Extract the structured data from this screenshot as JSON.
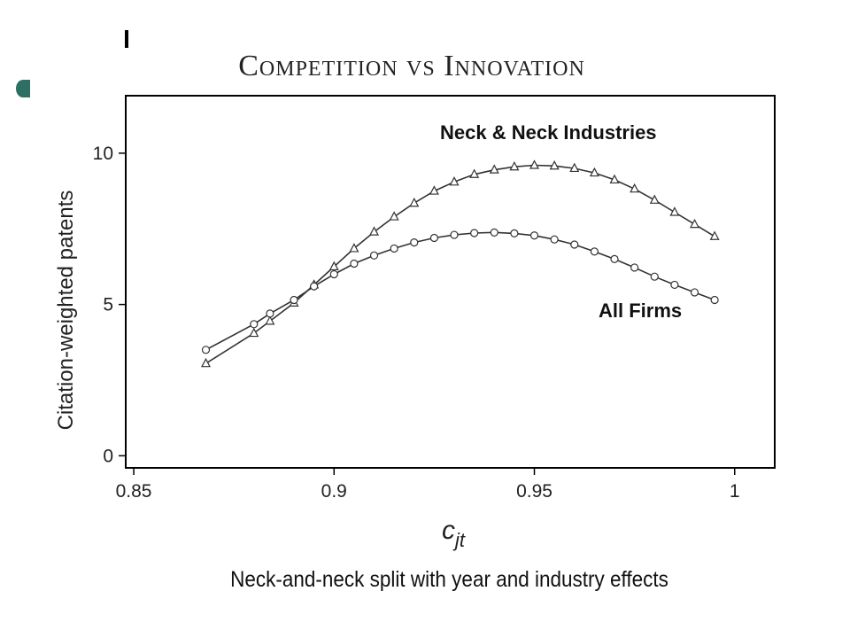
{
  "slide": {
    "title": "Competition vs Innovation",
    "caption": "Neck-and-neck split with year and industry effects"
  },
  "colors": {
    "accent": "#2f6f63",
    "ink": "#333333"
  },
  "chart_data": {
    "type": "line",
    "xlabel": "c_jt",
    "ylabel": "Citation-weighted patents",
    "xlim": [
      0.848,
      1.01
    ],
    "ylim": [
      -0.4,
      11.9
    ],
    "xticks": [
      "0.85",
      "0.9",
      "0.95",
      "1"
    ],
    "yticks": [
      "0",
      "5",
      "10"
    ],
    "grid": false,
    "annotations": [
      "Neck & Neck Industries",
      "All Firms"
    ],
    "series": [
      {
        "name": "Neck & Neck Industries",
        "marker": "triangle",
        "x": [
          0.868,
          0.88,
          0.884,
          0.89,
          0.895,
          0.9,
          0.905,
          0.91,
          0.915,
          0.92,
          0.925,
          0.93,
          0.935,
          0.94,
          0.945,
          0.95,
          0.955,
          0.96,
          0.965,
          0.97,
          0.975,
          0.98,
          0.985,
          0.99,
          0.995
        ],
        "y": [
          3.05,
          4.05,
          4.45,
          5.05,
          5.65,
          6.25,
          6.85,
          7.4,
          7.9,
          8.35,
          8.75,
          9.05,
          9.3,
          9.45,
          9.55,
          9.6,
          9.58,
          9.5,
          9.35,
          9.12,
          8.82,
          8.45,
          8.05,
          7.65,
          7.25
        ]
      },
      {
        "name": "All Firms",
        "marker": "circle",
        "x": [
          0.868,
          0.88,
          0.884,
          0.89,
          0.895,
          0.9,
          0.905,
          0.91,
          0.915,
          0.92,
          0.925,
          0.93,
          0.935,
          0.94,
          0.945,
          0.95,
          0.955,
          0.96,
          0.965,
          0.97,
          0.975,
          0.98,
          0.985,
          0.99,
          0.995
        ],
        "y": [
          3.5,
          4.35,
          4.7,
          5.15,
          5.6,
          6.0,
          6.35,
          6.62,
          6.85,
          7.05,
          7.2,
          7.3,
          7.36,
          7.38,
          7.35,
          7.28,
          7.15,
          6.98,
          6.75,
          6.5,
          6.22,
          5.92,
          5.65,
          5.4,
          5.15
        ]
      }
    ]
  }
}
